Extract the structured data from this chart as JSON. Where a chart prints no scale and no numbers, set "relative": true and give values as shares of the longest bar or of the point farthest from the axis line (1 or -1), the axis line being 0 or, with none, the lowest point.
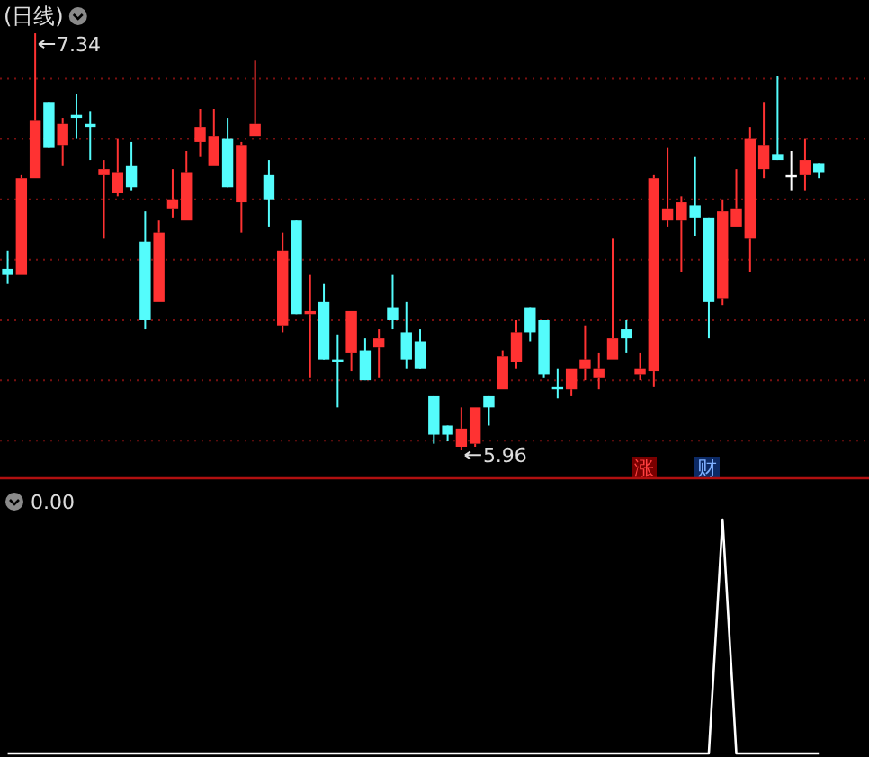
{
  "chart_data": [
    {
      "type": "candlestick",
      "title": "(日线)",
      "categories": [
        null,
        null,
        null,
        null,
        null,
        null,
        null,
        null,
        null,
        null,
        null,
        null,
        null,
        null,
        null,
        null,
        null,
        null,
        null,
        null,
        null,
        null,
        null,
        null,
        null,
        null,
        null,
        null,
        null,
        null,
        null,
        null,
        null,
        null,
        null,
        null,
        null,
        null,
        null,
        null,
        null,
        null,
        null,
        null,
        null,
        null,
        null,
        null,
        null,
        null,
        null,
        null,
        null,
        null,
        null,
        null,
        null,
        null,
        null,
        null
      ],
      "ohlc": [
        [
          6.56,
          6.62,
          6.51,
          6.54
        ],
        [
          6.54,
          6.87,
          6.54,
          6.86
        ],
        [
          6.86,
          7.34,
          6.86,
          7.05
        ],
        [
          7.11,
          7.11,
          6.96,
          6.96
        ],
        [
          6.97,
          7.06,
          6.9,
          7.04
        ],
        [
          7.07,
          7.14,
          6.99,
          7.06
        ],
        [
          7.04,
          7.08,
          6.92,
          7.03
        ],
        [
          6.87,
          6.92,
          6.66,
          6.89
        ],
        [
          6.81,
          6.99,
          6.8,
          6.88
        ],
        [
          6.9,
          6.98,
          6.82,
          6.83
        ],
        [
          6.65,
          6.75,
          6.36,
          6.39
        ],
        [
          6.45,
          6.72,
          6.45,
          6.68
        ],
        [
          6.76,
          6.89,
          6.73,
          6.79
        ],
        [
          6.72,
          6.95,
          6.72,
          6.88
        ],
        [
          6.98,
          7.09,
          6.93,
          7.03
        ],
        [
          6.9,
          7.09,
          6.9,
          7.0
        ],
        [
          6.99,
          7.06,
          6.83,
          6.83
        ],
        [
          6.78,
          6.98,
          6.68,
          6.97
        ],
        [
          7.0,
          7.25,
          7.0,
          7.04
        ],
        [
          6.87,
          6.92,
          6.7,
          6.79
        ],
        [
          6.37,
          6.68,
          6.35,
          6.62
        ],
        [
          6.72,
          6.72,
          6.41,
          6.41
        ],
        [
          6.41,
          6.54,
          6.2,
          6.42
        ],
        [
          6.45,
          6.51,
          6.26,
          6.26
        ],
        [
          6.26,
          6.34,
          6.1,
          6.25
        ],
        [
          6.28,
          6.42,
          6.22,
          6.42
        ],
        [
          6.29,
          6.33,
          6.19,
          6.19
        ],
        [
          6.3,
          6.36,
          6.2,
          6.33
        ],
        [
          6.43,
          6.54,
          6.36,
          6.39
        ],
        [
          6.35,
          6.45,
          6.23,
          6.26
        ],
        [
          6.32,
          6.36,
          6.23,
          6.23
        ],
        [
          6.14,
          6.14,
          5.98,
          6.01
        ],
        [
          6.04,
          6.04,
          5.99,
          6.01
        ],
        [
          5.97,
          6.1,
          5.96,
          6.03
        ],
        [
          5.98,
          6.1,
          5.97,
          6.1
        ],
        [
          6.14,
          6.14,
          6.04,
          6.1
        ],
        [
          6.16,
          6.29,
          6.16,
          6.27
        ],
        [
          6.25,
          6.39,
          6.23,
          6.35
        ],
        [
          6.43,
          6.43,
          6.32,
          6.35
        ],
        [
          6.39,
          6.39,
          6.2,
          6.21
        ],
        [
          6.17,
          6.23,
          6.13,
          6.16
        ],
        [
          6.16,
          6.23,
          6.14,
          6.23
        ],
        [
          6.23,
          6.37,
          6.19,
          6.26
        ],
        [
          6.2,
          6.28,
          6.16,
          6.23
        ],
        [
          6.26,
          6.66,
          6.26,
          6.33
        ],
        [
          6.36,
          6.39,
          6.28,
          6.33
        ],
        [
          6.21,
          6.28,
          6.19,
          6.23
        ],
        [
          6.22,
          6.87,
          6.17,
          6.86
        ],
        [
          6.72,
          6.96,
          6.7,
          6.76
        ],
        [
          6.72,
          6.8,
          6.55,
          6.78
        ],
        [
          6.77,
          6.93,
          6.67,
          6.73
        ],
        [
          6.73,
          6.73,
          6.33,
          6.45
        ],
        [
          6.46,
          6.79,
          6.44,
          6.75
        ],
        [
          6.7,
          6.89,
          6.7,
          6.76
        ],
        [
          6.66,
          7.03,
          6.55,
          6.99
        ],
        [
          6.89,
          7.11,
          6.86,
          6.97
        ],
        [
          6.94,
          7.2,
          6.92,
          6.92
        ],
        [
          6.87,
          6.95,
          6.82,
          6.87
        ],
        [
          6.87,
          6.99,
          6.82,
          6.92
        ],
        [
          6.91,
          6.91,
          6.86,
          6.88
        ]
      ],
      "colors": [
        "#54fcfc",
        "#ff3232",
        "#ff3232",
        "#54fcfc",
        "#ff3232",
        "#54fcfc",
        "#54fcfc",
        "#ff3232",
        "#ff3232",
        "#54fcfc",
        "#54fcfc",
        "#ff3232",
        "#ff3232",
        "#ff3232",
        "#ff3232",
        "#ff3232",
        "#54fcfc",
        "#ff3232",
        "#ff3232",
        "#54fcfc",
        "#ff3232",
        "#54fcfc",
        "#ff3232",
        "#54fcfc",
        "#54fcfc",
        "#ff3232",
        "#54fcfc",
        "#ff3232",
        "#54fcfc",
        "#54fcfc",
        "#54fcfc",
        "#54fcfc",
        "#54fcfc",
        "#ff3232",
        "#ff3232",
        "#54fcfc",
        "#ff3232",
        "#ff3232",
        "#54fcfc",
        "#54fcfc",
        "#54fcfc",
        "#ff3232",
        "#ff3232",
        "#ff3232",
        "#ff3232",
        "#54fcfc",
        "#ff3232",
        "#ff3232",
        "#ff3232",
        "#ff3232",
        "#54fcfc",
        "#54fcfc",
        "#ff3232",
        "#ff3232",
        "#ff3232",
        "#ff3232",
        "#54fcfc",
        "#ffffff",
        "#ff3232",
        "#54fcfc"
      ],
      "yticks": [
        {
          "value": 7.19,
          "label": null
        },
        {
          "value": 6.99,
          "label": null
        },
        {
          "value": 6.79,
          "label": null
        },
        {
          "value": 6.59,
          "label": null
        },
        {
          "value": 6.39,
          "label": null
        },
        {
          "value": 6.19,
          "label": null
        },
        {
          "value": 5.99,
          "label": null
        }
      ],
      "grid": "y",
      "tick_labels": false,
      "annotations": [
        "7.34",
        "5.96",
        "涨",
        "财"
      ]
    },
    {
      "type": "line",
      "title": "0.00",
      "categories": [
        null,
        null,
        null,
        null,
        null,
        null,
        null,
        null,
        null,
        null,
        null,
        null,
        null,
        null,
        null,
        null,
        null,
        null,
        null,
        null,
        null,
        null,
        null,
        null,
        null,
        null,
        null,
        null,
        null,
        null,
        null,
        null,
        null,
        null,
        null,
        null,
        null,
        null,
        null,
        null,
        null,
        null,
        null,
        null,
        null,
        null,
        null,
        null,
        null,
        null,
        null,
        null,
        null,
        null,
        null,
        null,
        null,
        null,
        null,
        null
      ],
      "values": [
        0,
        0,
        0,
        0,
        0,
        0,
        0,
        0,
        0,
        0,
        0,
        0,
        0,
        0,
        0,
        0,
        0,
        0,
        0,
        0,
        0,
        0,
        0,
        0,
        0,
        0,
        0,
        0,
        0,
        0,
        0,
        0,
        0,
        0,
        0,
        0,
        0,
        0,
        0,
        0,
        0,
        0,
        0,
        0,
        0,
        0,
        0,
        0,
        0,
        0,
        0,
        0,
        1,
        0,
        0,
        0,
        0,
        0,
        0,
        0
      ],
      "color": "#ffffff",
      "relative": true
    }
  ]
}
